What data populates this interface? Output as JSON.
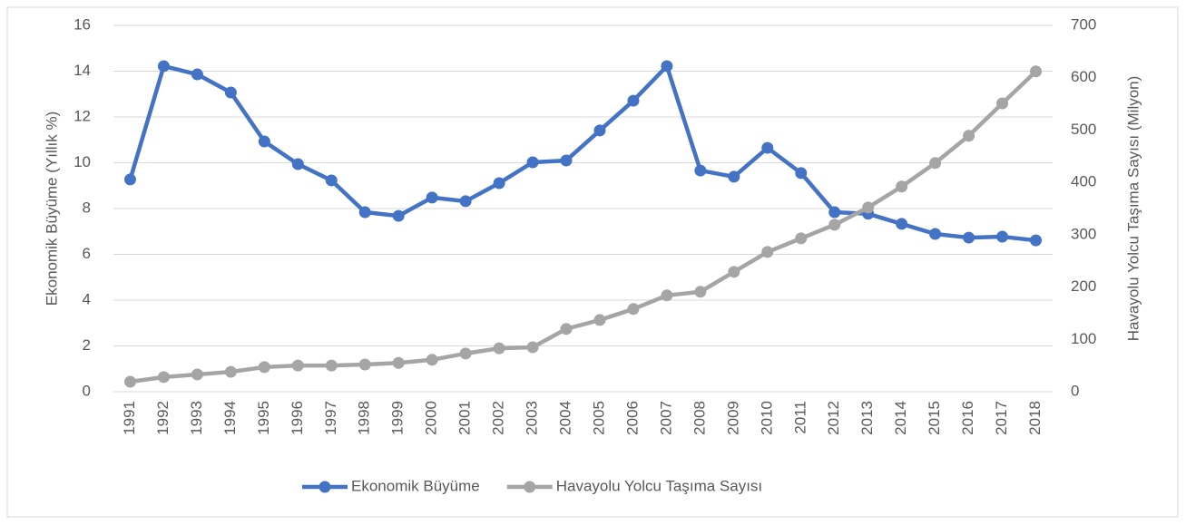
{
  "chart_data": {
    "type": "line",
    "y_label": "Ekonomik Büyüme (Yıllık %)",
    "y2_label": "Havayolu Yolcu Taşıma Sayısı (Milyon)",
    "categories": [
      "1991",
      "1992",
      "1993",
      "1994",
      "1995",
      "1996",
      "1997",
      "1998",
      "1999",
      "2000",
      "2001",
      "2002",
      "2003",
      "2004",
      "2005",
      "2006",
      "2007",
      "2008",
      "2009",
      "2010",
      "2011",
      "2012",
      "2013",
      "2014",
      "2015",
      "2016",
      "2017",
      "2018"
    ],
    "series": [
      {
        "name": "Ekonomik Büyüme",
        "color": "#4472c4",
        "axis": "y",
        "values": [
          9.27,
          14.22,
          13.86,
          13.07,
          10.93,
          9.94,
          9.23,
          7.84,
          7.68,
          8.48,
          8.32,
          9.11,
          10.02,
          10.1,
          11.41,
          12.71,
          14.22,
          9.66,
          9.39,
          10.65,
          9.55,
          7.84,
          7.77,
          7.33,
          6.89,
          6.73,
          6.77,
          6.61
        ]
      },
      {
        "name": "Havayolu Yolcu Taşıma Sayısı",
        "color": "#a5a5a5",
        "axis": "y2",
        "values": [
          19,
          28,
          33,
          38,
          47,
          50,
          50,
          52,
          55,
          61,
          73,
          83,
          85,
          120,
          137,
          158,
          184,
          191,
          229,
          267,
          293,
          319,
          352,
          392,
          437,
          489,
          551,
          612
        ]
      }
    ],
    "ylim": [
      0,
      16
    ],
    "yticks": [
      0,
      2,
      4,
      6,
      8,
      10,
      12,
      14,
      16
    ],
    "y2lim": [
      0,
      700
    ],
    "y2ticks": [
      0,
      100,
      200,
      300,
      400,
      500,
      600,
      700
    ],
    "grid": true,
    "legend": "bottom"
  }
}
